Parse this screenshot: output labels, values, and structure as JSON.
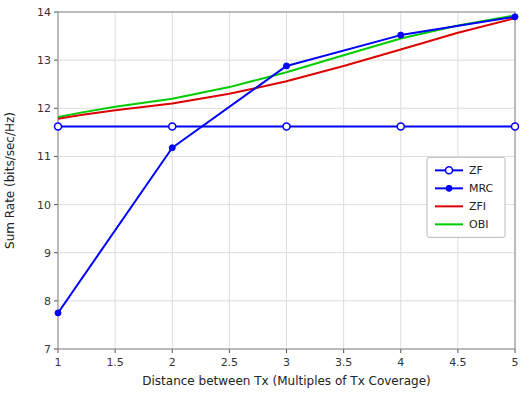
{
  "chart_data": {
    "type": "line",
    "xlabel": "Distance between Tx (Multiples of Tx Coverage)",
    "ylabel": "Sum Rate (bits/sec/Hz)",
    "xlim": [
      1,
      5
    ],
    "ylim": [
      7,
      14
    ],
    "xticks": [
      1,
      1.5,
      2,
      2.5,
      3,
      3.5,
      4,
      4.5,
      5
    ],
    "yticks": [
      7,
      8,
      9,
      10,
      11,
      12,
      13,
      14
    ],
    "grid": true,
    "legend": "right",
    "series": [
      {
        "name": "ZF",
        "color": "#0000ff",
        "marker": "open-circle",
        "line_style": "solid",
        "x": [
          1,
          2,
          3,
          4,
          5
        ],
        "values": [
          11.62,
          11.62,
          11.62,
          11.62,
          11.62
        ]
      },
      {
        "name": "MRC",
        "color": "#0000ff",
        "marker": "circle",
        "line_style": "solid",
        "x": [
          1,
          2,
          3,
          4,
          5
        ],
        "values": [
          7.75,
          11.18,
          12.88,
          13.52,
          13.9
        ]
      },
      {
        "name": "ZFI",
        "color": "#dd0000",
        "marker": "none",
        "line_style": "solid",
        "x": [
          1,
          1.2,
          1.5,
          2,
          2.5,
          3,
          3.5,
          4,
          4.5,
          5
        ],
        "values": [
          11.78,
          11.86,
          11.96,
          12.1,
          12.3,
          12.56,
          12.88,
          13.22,
          13.57,
          13.87
        ]
      },
      {
        "name": "OBI",
        "color": "#00cc00",
        "marker": "none",
        "line_style": "solid",
        "x": [
          1,
          1.2,
          1.5,
          2,
          2.5,
          3,
          3.5,
          4,
          4.5,
          5
        ],
        "values": [
          11.82,
          11.91,
          12.03,
          12.2,
          12.44,
          12.75,
          13.1,
          13.45,
          13.72,
          13.93
        ]
      }
    ]
  }
}
